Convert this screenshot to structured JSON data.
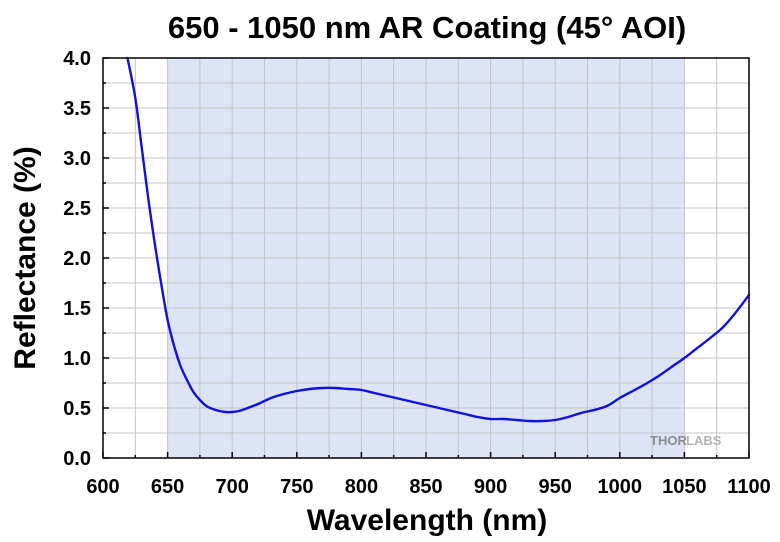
{
  "chart_data": {
    "type": "line",
    "title": "650 - 1050 nm AR Coating (45° AOI)",
    "xlabel": "Wavelength (nm)",
    "ylabel": "Reflectance (%)",
    "xlim": [
      600,
      1100
    ],
    "ylim": [
      0,
      4.0
    ],
    "x_ticks": [
      "600",
      "650",
      "700",
      "750",
      "800",
      "850",
      "900",
      "950",
      "1000",
      "1050",
      "1100"
    ],
    "y_ticks": [
      "0.0",
      "0.5",
      "1.0",
      "1.5",
      "2.0",
      "2.5",
      "3.0",
      "3.5",
      "4.0"
    ],
    "grid": true,
    "highlight_band": [
      650,
      1050
    ],
    "highlight_color": "#dce4f6",
    "line_color": "#1010e0",
    "series": [
      {
        "x": [
          619,
          625,
          630,
          635,
          640,
          645,
          650,
          655,
          660,
          665,
          670,
          675,
          680,
          685,
          690,
          695,
          700,
          705,
          710,
          720,
          730,
          740,
          750,
          760,
          770,
          780,
          790,
          800,
          810,
          820,
          830,
          840,
          850,
          860,
          870,
          880,
          890,
          900,
          910,
          920,
          930,
          940,
          950,
          960,
          970,
          980,
          990,
          1000,
          1010,
          1020,
          1030,
          1040,
          1050,
          1060,
          1070,
          1080,
          1090,
          1100
        ],
        "y": [
          4.0,
          3.6,
          3.1,
          2.6,
          2.15,
          1.75,
          1.38,
          1.12,
          0.92,
          0.78,
          0.66,
          0.58,
          0.52,
          0.49,
          0.47,
          0.46,
          0.46,
          0.47,
          0.49,
          0.54,
          0.6,
          0.64,
          0.67,
          0.69,
          0.7,
          0.7,
          0.69,
          0.68,
          0.65,
          0.62,
          0.59,
          0.56,
          0.53,
          0.5,
          0.47,
          0.44,
          0.41,
          0.39,
          0.39,
          0.38,
          0.37,
          0.37,
          0.38,
          0.41,
          0.45,
          0.48,
          0.52,
          0.6,
          0.67,
          0.74,
          0.82,
          0.91,
          1.0,
          1.1,
          1.2,
          1.31,
          1.46,
          1.63
        ]
      }
    ]
  },
  "watermark": {
    "part1": "THOR",
    "part2": "LABS"
  }
}
